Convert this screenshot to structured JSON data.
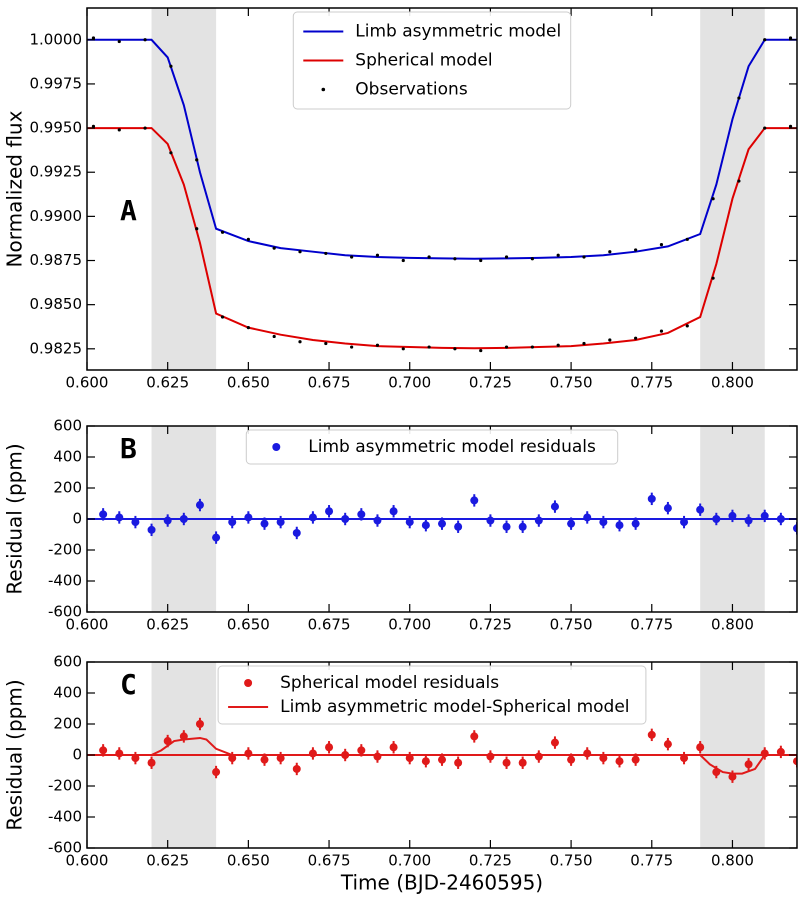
{
  "chart_data": [
    {
      "type": "line",
      "panel_label": "A",
      "ylabel": "Normalized flux",
      "xlim": [
        0.6,
        0.82
      ],
      "ylim": [
        0.9813,
        1.0018
      ],
      "xticks": [
        {
          "value": 0.6,
          "label": "0.600"
        },
        {
          "value": 0.625,
          "label": "0.625"
        },
        {
          "value": 0.65,
          "label": "0.650"
        },
        {
          "value": 0.675,
          "label": "0.675"
        },
        {
          "value": 0.7,
          "label": "0.700"
        },
        {
          "value": 0.725,
          "label": "0.725"
        },
        {
          "value": 0.75,
          "label": "0.750"
        },
        {
          "value": 0.775,
          "label": "0.775"
        },
        {
          "value": 0.8,
          "label": "0.800"
        }
      ],
      "yticks": [
        {
          "value": 0.9825,
          "label": "0.9825"
        },
        {
          "value": 0.985,
          "label": "0.9850"
        },
        {
          "value": 0.9875,
          "label": "0.9875"
        },
        {
          "value": 0.99,
          "label": "0.9900"
        },
        {
          "value": 0.9925,
          "label": "0.9925"
        },
        {
          "value": 0.995,
          "label": "0.9950"
        },
        {
          "value": 0.9975,
          "label": "0.9975"
        },
        {
          "value": 1.0,
          "label": "1.0000"
        }
      ],
      "shaded": [
        [
          0.62,
          0.64
        ],
        [
          0.79,
          0.81
        ]
      ],
      "legend": "upper center",
      "series": [
        {
          "name": "Limb asymmetric model",
          "color": "#0000cc",
          "style": "line",
          "x": [
            0.6,
            0.61,
            0.62,
            0.625,
            0.63,
            0.635,
            0.64,
            0.65,
            0.66,
            0.67,
            0.68,
            0.69,
            0.7,
            0.71,
            0.72,
            0.73,
            0.74,
            0.75,
            0.76,
            0.77,
            0.78,
            0.79,
            0.795,
            0.8,
            0.805,
            0.81,
            0.82
          ],
          "values": [
            1.0,
            1.0,
            1.0,
            0.999,
            0.9963,
            0.9925,
            0.9893,
            0.9886,
            0.9882,
            0.988,
            0.9878,
            0.9877,
            0.98765,
            0.98762,
            0.9876,
            0.98762,
            0.98765,
            0.9877,
            0.9878,
            0.988,
            0.9883,
            0.989,
            0.9918,
            0.9955,
            0.9985,
            1.0,
            1.0
          ]
        },
        {
          "name": "Spherical model",
          "color": "#dd0000",
          "style": "line",
          "x": [
            0.6,
            0.61,
            0.62,
            0.625,
            0.63,
            0.635,
            0.64,
            0.65,
            0.66,
            0.67,
            0.68,
            0.69,
            0.7,
            0.71,
            0.72,
            0.73,
            0.74,
            0.75,
            0.76,
            0.77,
            0.78,
            0.79,
            0.795,
            0.8,
            0.805,
            0.81,
            0.82
          ],
          "values": [
            0.995,
            0.995,
            0.995,
            0.9941,
            0.9918,
            0.9885,
            0.9845,
            0.9837,
            0.9833,
            0.983,
            0.9828,
            0.98265,
            0.9826,
            0.98255,
            0.98253,
            0.98255,
            0.9826,
            0.98265,
            0.9828,
            0.983,
            0.9834,
            0.9843,
            0.9873,
            0.991,
            0.9938,
            0.995,
            0.995
          ]
        },
        {
          "name": "Observations",
          "color": "#000000",
          "style": "dots",
          "x": [
            0.602,
            0.61,
            0.618,
            0.626,
            0.634,
            0.642,
            0.65,
            0.658,
            0.666,
            0.674,
            0.682,
            0.69,
            0.698,
            0.706,
            0.714,
            0.722,
            0.73,
            0.738,
            0.746,
            0.754,
            0.762,
            0.77,
            0.778,
            0.786,
            0.794,
            0.802,
            0.81,
            0.818,
            0.602,
            0.61,
            0.618,
            0.626,
            0.634,
            0.642,
            0.65,
            0.658,
            0.666,
            0.674,
            0.682,
            0.69,
            0.698,
            0.706,
            0.714,
            0.722,
            0.73,
            0.738,
            0.746,
            0.754,
            0.762,
            0.77,
            0.778,
            0.786,
            0.794,
            0.802,
            0.81,
            0.818
          ],
          "values": [
            1.0001,
            0.9999,
            1.0,
            0.9985,
            0.9932,
            0.9891,
            0.9887,
            0.9882,
            0.988,
            0.9879,
            0.9877,
            0.9878,
            0.9875,
            0.9877,
            0.9876,
            0.9875,
            0.9877,
            0.9876,
            0.9878,
            0.9877,
            0.988,
            0.9881,
            0.9884,
            0.9887,
            0.991,
            0.9967,
            1.0,
            1.0001,
            0.9951,
            0.9949,
            0.995,
            0.9936,
            0.9893,
            0.9843,
            0.9837,
            0.9832,
            0.9829,
            0.9828,
            0.9826,
            0.9827,
            0.9825,
            0.9826,
            0.9825,
            0.9824,
            0.9826,
            0.9826,
            0.9827,
            0.9828,
            0.983,
            0.9831,
            0.9835,
            0.9838,
            0.9865,
            0.992,
            0.995,
            0.9951
          ]
        }
      ]
    },
    {
      "type": "errorbar",
      "panel_label": "B",
      "ylabel": "Residual (ppm)",
      "xlim": [
        0.6,
        0.82
      ],
      "ylim": [
        -600,
        600
      ],
      "xticks": [
        {
          "value": 0.6,
          "label": "0.600"
        },
        {
          "value": 0.625,
          "label": "0.625"
        },
        {
          "value": 0.65,
          "label": "0.650"
        },
        {
          "value": 0.675,
          "label": "0.675"
        },
        {
          "value": 0.7,
          "label": "0.700"
        },
        {
          "value": 0.725,
          "label": "0.725"
        },
        {
          "value": 0.75,
          "label": "0.750"
        },
        {
          "value": 0.775,
          "label": "0.775"
        },
        {
          "value": 0.8,
          "label": "0.800"
        }
      ],
      "yticks": [
        -600,
        -400,
        -200,
        0,
        200,
        400,
        600
      ],
      "shaded": [
        [
          0.62,
          0.64
        ],
        [
          0.79,
          0.81
        ]
      ],
      "legend": "upper center",
      "series": [
        {
          "name": "Limb asymmetric model residuals",
          "color": "#1a1ae0",
          "style": "errorbar",
          "x": [
            0.605,
            0.61,
            0.615,
            0.62,
            0.625,
            0.63,
            0.635,
            0.64,
            0.645,
            0.65,
            0.655,
            0.66,
            0.665,
            0.67,
            0.675,
            0.68,
            0.685,
            0.69,
            0.695,
            0.7,
            0.705,
            0.71,
            0.715,
            0.72,
            0.725,
            0.73,
            0.735,
            0.74,
            0.745,
            0.75,
            0.755,
            0.76,
            0.765,
            0.77,
            0.775,
            0.78,
            0.785,
            0.79,
            0.795,
            0.8,
            0.805,
            0.81,
            0.815,
            0.82
          ],
          "values": [
            30,
            10,
            -20,
            -70,
            -10,
            0,
            90,
            -120,
            -20,
            10,
            -30,
            -20,
            -90,
            10,
            50,
            0,
            30,
            -10,
            50,
            -20,
            -40,
            -30,
            -50,
            120,
            -10,
            -50,
            -50,
            -10,
            80,
            -30,
            10,
            -20,
            -40,
            -30,
            130,
            70,
            -20,
            60,
            0,
            20,
            -10,
            20,
            0,
            -60
          ],
          "errors": [
            40,
            40,
            40,
            40,
            40,
            40,
            40,
            40,
            40,
            40,
            40,
            40,
            40,
            40,
            40,
            40,
            40,
            40,
            40,
            40,
            40,
            40,
            40,
            40,
            40,
            40,
            40,
            40,
            40,
            40,
            40,
            40,
            40,
            40,
            40,
            40,
            40,
            40,
            40,
            40,
            40,
            40,
            40,
            40
          ]
        }
      ]
    },
    {
      "type": "errorbar",
      "panel_label": "C",
      "ylabel": "Residual (ppm)",
      "xlabel": "Time (BJD-2460595)",
      "xlim": [
        0.6,
        0.82
      ],
      "ylim": [
        -600,
        600
      ],
      "xticks": [
        {
          "value": 0.6,
          "label": "0.600"
        },
        {
          "value": 0.625,
          "label": "0.625"
        },
        {
          "value": 0.65,
          "label": "0.650"
        },
        {
          "value": 0.675,
          "label": "0.675"
        },
        {
          "value": 0.7,
          "label": "0.700"
        },
        {
          "value": 0.725,
          "label": "0.725"
        },
        {
          "value": 0.75,
          "label": "0.750"
        },
        {
          "value": 0.775,
          "label": "0.775"
        },
        {
          "value": 0.8,
          "label": "0.800"
        }
      ],
      "yticks": [
        -600,
        -400,
        -200,
        0,
        200,
        400,
        600
      ],
      "shaded": [
        [
          0.62,
          0.64
        ],
        [
          0.79,
          0.81
        ]
      ],
      "legend": "upper center",
      "series": [
        {
          "name": "Spherical model residuals",
          "color": "#e01a1a",
          "style": "errorbar",
          "x": [
            0.605,
            0.61,
            0.615,
            0.62,
            0.625,
            0.63,
            0.635,
            0.64,
            0.645,
            0.65,
            0.655,
            0.66,
            0.665,
            0.67,
            0.675,
            0.68,
            0.685,
            0.69,
            0.695,
            0.7,
            0.705,
            0.71,
            0.715,
            0.72,
            0.725,
            0.73,
            0.735,
            0.74,
            0.745,
            0.75,
            0.755,
            0.76,
            0.765,
            0.77,
            0.775,
            0.78,
            0.785,
            0.79,
            0.795,
            0.8,
            0.805,
            0.81,
            0.815,
            0.82
          ],
          "values": [
            30,
            10,
            -20,
            -50,
            90,
            120,
            200,
            -110,
            -20,
            10,
            -30,
            -20,
            -90,
            10,
            50,
            0,
            30,
            -10,
            50,
            -20,
            -40,
            -30,
            -50,
            120,
            -10,
            -50,
            -50,
            -10,
            80,
            -30,
            10,
            -20,
            -40,
            -30,
            130,
            70,
            -20,
            50,
            -110,
            -140,
            -60,
            10,
            20,
            -40
          ],
          "errors": [
            40,
            40,
            40,
            40,
            40,
            40,
            40,
            40,
            40,
            40,
            40,
            40,
            40,
            40,
            40,
            40,
            40,
            40,
            40,
            40,
            40,
            40,
            40,
            40,
            40,
            40,
            40,
            40,
            40,
            40,
            40,
            40,
            40,
            40,
            40,
            40,
            40,
            40,
            40,
            40,
            40,
            40,
            40,
            40
          ]
        },
        {
          "name": "Limb asymmetric model-Spherical model",
          "color": "#e01a1a",
          "style": "line",
          "x": [
            0.6,
            0.62,
            0.623,
            0.627,
            0.63,
            0.635,
            0.637,
            0.64,
            0.645,
            0.79,
            0.793,
            0.797,
            0.8,
            0.803,
            0.807,
            0.81,
            0.82
          ],
          "values": [
            0,
            0,
            30,
            90,
            100,
            110,
            100,
            40,
            0,
            0,
            -60,
            -110,
            -120,
            -120,
            -90,
            0,
            0
          ]
        }
      ]
    }
  ]
}
